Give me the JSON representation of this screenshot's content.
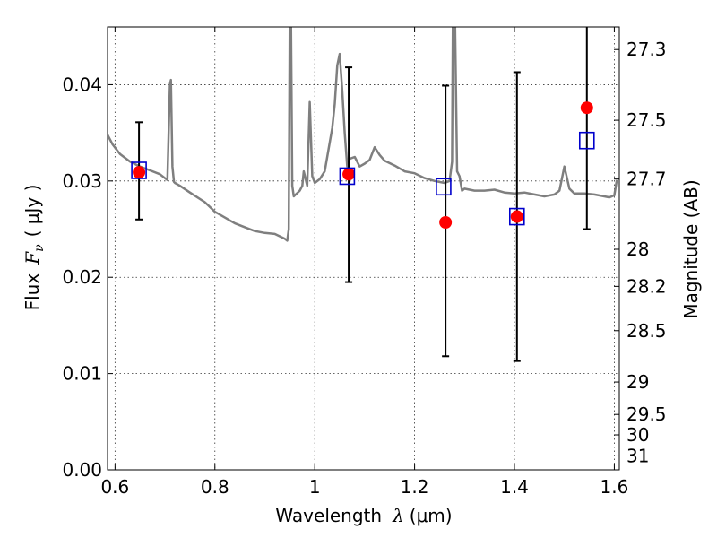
{
  "chart_data": {
    "type": "scatter",
    "xlabel": {
      "text": "Wavelength",
      "symbol": "λ",
      "unit": "(μm)"
    },
    "ylabel": {
      "text": "Flux",
      "symbol": "F",
      "subscript": "ν",
      "unit": "( μJy )"
    },
    "y2label": "Magnitude (AB)",
    "xlim": [
      0.585,
      1.61
    ],
    "ylim": [
      0.0,
      0.046
    ],
    "grid": true,
    "x_ticks": [
      "0.6",
      "0.8",
      "1",
      "1.2",
      "1.4",
      "1.6"
    ],
    "x_tick_values": [
      0.6,
      0.8,
      1.0,
      1.2,
      1.4,
      1.6
    ],
    "y_ticks": [
      "0.00",
      "0.01",
      "0.02",
      "0.03",
      "0.04"
    ],
    "y_tick_values": [
      0.0,
      0.01,
      0.02,
      0.03,
      0.04
    ],
    "y2_ticks": [
      "27.3",
      "27.5",
      "27.7",
      "28",
      "28.2",
      "28.5",
      "29",
      "29.5",
      "30",
      "31"
    ],
    "y2_tick_values": [
      27.3,
      27.5,
      27.7,
      28.0,
      28.2,
      28.5,
      29.0,
      29.5,
      30.0,
      31.0
    ],
    "series": [
      {
        "kind": "line",
        "color": "#7f7f7f",
        "x": [
          0.585,
          0.595,
          0.61,
          0.63,
          0.65,
          0.67,
          0.69,
          0.705,
          0.71,
          0.712,
          0.715,
          0.718,
          0.72,
          0.73,
          0.75,
          0.78,
          0.8,
          0.82,
          0.84,
          0.86,
          0.88,
          0.9,
          0.92,
          0.94,
          0.945,
          0.948,
          0.95,
          0.952,
          0.955,
          0.958,
          0.962,
          0.97,
          0.975,
          0.978,
          0.985,
          0.99,
          0.995,
          1.0,
          1.01,
          1.02,
          1.03,
          1.035,
          1.04,
          1.045,
          1.05,
          1.055,
          1.06,
          1.065,
          1.07,
          1.08,
          1.09,
          1.1,
          1.11,
          1.12,
          1.13,
          1.14,
          1.16,
          1.18,
          1.2,
          1.22,
          1.24,
          1.26,
          1.27,
          1.275,
          1.277,
          1.28,
          1.285,
          1.29,
          1.295,
          1.3,
          1.32,
          1.34,
          1.36,
          1.38,
          1.4,
          1.42,
          1.44,
          1.46,
          1.48,
          1.49,
          1.5,
          1.51,
          1.52,
          1.54,
          1.56,
          1.58,
          1.59,
          1.6,
          1.605
        ],
        "y": [
          0.0348,
          0.0338,
          0.0328,
          0.032,
          0.0315,
          0.0311,
          0.0307,
          0.0301,
          0.04,
          0.0405,
          0.0315,
          0.0299,
          0.0298,
          0.0295,
          0.0288,
          0.0278,
          0.0268,
          0.0262,
          0.0256,
          0.0252,
          0.0248,
          0.0246,
          0.0245,
          0.024,
          0.0238,
          0.025,
          0.047,
          0.05,
          0.0295,
          0.0284,
          0.0286,
          0.029,
          0.0295,
          0.031,
          0.0295,
          0.0382,
          0.0305,
          0.0298,
          0.0302,
          0.031,
          0.034,
          0.0355,
          0.038,
          0.042,
          0.0432,
          0.0395,
          0.035,
          0.0315,
          0.0323,
          0.0325,
          0.0315,
          0.0318,
          0.0322,
          0.0335,
          0.0327,
          0.0321,
          0.0316,
          0.031,
          0.0308,
          0.0303,
          0.03,
          0.0298,
          0.03,
          0.032,
          0.05,
          0.05,
          0.031,
          0.0305,
          0.029,
          0.0292,
          0.029,
          0.029,
          0.0291,
          0.0288,
          0.0287,
          0.0288,
          0.0286,
          0.0284,
          0.0286,
          0.029,
          0.0315,
          0.0292,
          0.0287,
          0.0287,
          0.0286,
          0.0284,
          0.0283,
          0.0285,
          0.0301
        ]
      },
      {
        "kind": "squares",
        "color": "#0000cc",
        "x": [
          0.648,
          1.065,
          1.258,
          1.405,
          1.545
        ],
        "y": [
          0.0311,
          0.0305,
          0.0294,
          0.0263,
          0.0342
        ]
      },
      {
        "kind": "points-errorbars",
        "color": "#ff0000",
        "x": [
          0.648,
          1.068,
          1.262,
          1.405,
          1.545
        ],
        "y": [
          0.0309,
          0.0307,
          0.0257,
          0.0263,
          0.0376
        ],
        "yerr_low": [
          0.026,
          0.0195,
          0.0118,
          0.0113,
          0.025
        ],
        "yerr_high": [
          0.0361,
          0.0418,
          0.0399,
          0.0413,
          0.05
        ]
      }
    ]
  }
}
